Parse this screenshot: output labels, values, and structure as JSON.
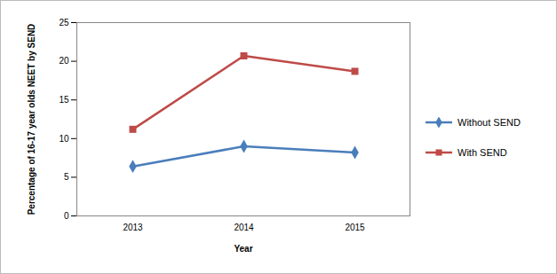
{
  "chart_data": {
    "type": "line",
    "x_label": "Year",
    "y_label": "Percentage of 16-17 year olds NEET by SEND",
    "categories": [
      "2013",
      "2014",
      "2015"
    ],
    "series": [
      {
        "name": "Without SEND",
        "color": "#4a7ebb",
        "marker": "diamond",
        "values": [
          6.4,
          9.0,
          8.2
        ]
      },
      {
        "name": "With SEND",
        "color": "#be4b48",
        "marker": "square",
        "values": [
          11.2,
          20.7,
          18.7
        ]
      }
    ],
    "ylim": [
      0,
      25
    ],
    "yticks": [
      0,
      5,
      10,
      15,
      20,
      25
    ],
    "grid": false,
    "legend": "right"
  }
}
